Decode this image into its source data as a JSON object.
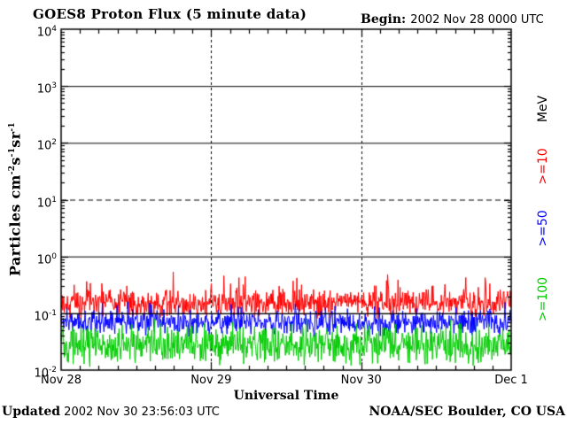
{
  "header": {
    "begin_label": "Begin:",
    "begin_value": "2002 Nov 28 0000 UTC"
  },
  "footer": {
    "updated_label": "Updated",
    "updated_value": "2002 Nov 30 23:56:03 UTC",
    "credit": "NOAA/SEC Boulder, CO USA"
  },
  "chart_data": {
    "type": "line",
    "title": "GOES8 Proton Flux (5 minute data)",
    "xlabel": "Universal Time",
    "ylabel_parts": [
      {
        "t": "Particles cm",
        "e": "-2"
      },
      {
        "t": "s",
        "e": "-1"
      },
      {
        "t": "sr",
        "e": "-1"
      }
    ],
    "x_ticks": [
      "Nov 28",
      "Nov 29",
      "Nov 30",
      "Dec 1"
    ],
    "x_span_days": 3,
    "samples_per_day": 288,
    "y_log_min": -2,
    "y_log_max": 4,
    "y_ticks": [
      {
        "base": "10",
        "exp": "4"
      },
      {
        "base": "10",
        "exp": "3"
      },
      {
        "base": "10",
        "exp": "2"
      },
      {
        "base": "10",
        "exp": "1"
      },
      {
        "base": "10",
        "exp": "0"
      },
      {
        "base": "10",
        "exp": "-1"
      },
      {
        "base": "10",
        "exp": "-2"
      }
    ],
    "grid": {
      "solid_log": [
        3,
        2,
        0,
        -1
      ],
      "dashed_log": [
        1
      ],
      "vertical_dashed_days": [
        1,
        2
      ],
      "overlay_log": -1
    },
    "legend_title": {
      "label": "MeV",
      "color": "#000000"
    },
    "series": [
      {
        "name": ">=10",
        "color": "#ff0000",
        "log10_base": -0.83,
        "log10_noise": 0.27,
        "spike_prob": 0.1,
        "spike_amp": 0.38,
        "typical_flux": 0.15,
        "flux_min": 0.08,
        "flux_max": 0.6
      },
      {
        "name": ">=50",
        "color": "#0000ff",
        "log10_base": -1.17,
        "log10_noise": 0.25,
        "spike_prob": 0.08,
        "spike_amp": 0.33,
        "typical_flux": 0.07,
        "flux_min": 0.03,
        "flux_max": 0.25
      },
      {
        "name": ">=100",
        "color": "#00cc00",
        "log10_base": -1.55,
        "log10_noise": 0.4,
        "spike_prob": 0.05,
        "spike_amp": 0.35,
        "typical_flux": 0.025,
        "flux_min": 0.01,
        "flux_max": 0.1
      }
    ],
    "axis_color": "#000000",
    "background": "#ffffff",
    "noise_seed": 20021128
  }
}
